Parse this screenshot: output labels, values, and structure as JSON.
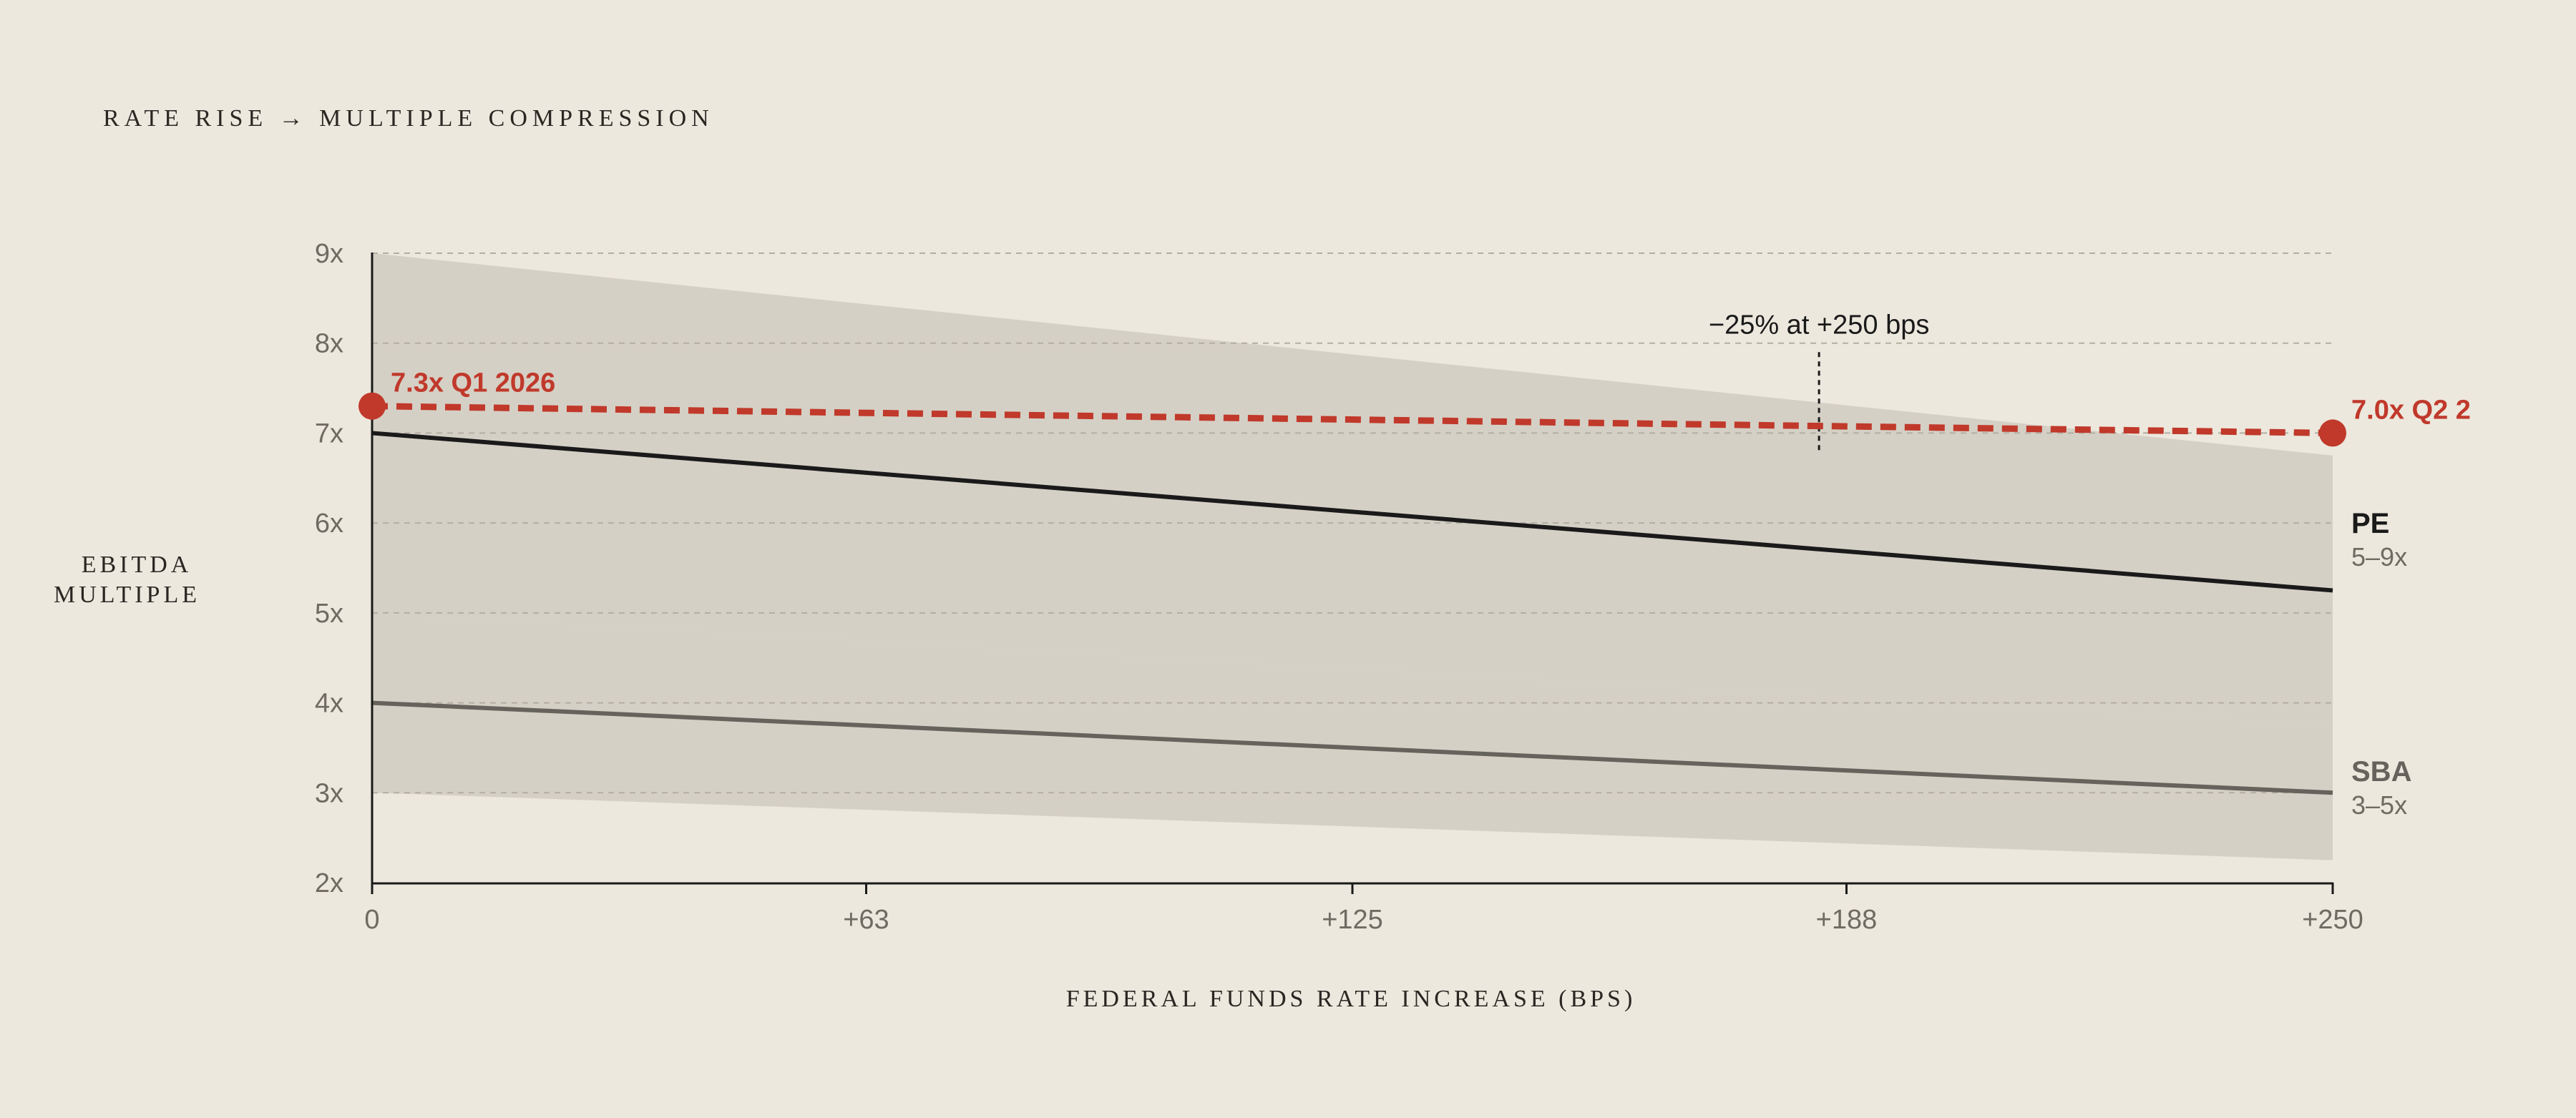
{
  "chart_data": {
    "type": "line",
    "title": "RATE RISE → MULTIPLE COMPRESSION",
    "xlabel": "FEDERAL FUNDS RATE INCREASE (BPS)",
    "ylabel": [
      "EBITDA",
      "MULTIPLE"
    ],
    "x_ticks": [
      "0",
      "+63",
      "+125",
      "+188",
      "+250"
    ],
    "y_ticks": [
      "2x",
      "3x",
      "4x",
      "5x",
      "6x",
      "7x",
      "8x",
      "9x"
    ],
    "xlim": [
      0,
      250
    ],
    "ylim": [
      2,
      9
    ],
    "grid": "horizontal-dashed",
    "series": [
      {
        "name": "PE",
        "range_label": "5–9x",
        "color": "#1a1a1a",
        "x": [
          0,
          250
        ],
        "y": [
          7.0,
          5.25
        ],
        "band_lower": [
          5.0,
          3.75
        ],
        "band_upper": [
          9.0,
          6.75
        ]
      },
      {
        "name": "SBA",
        "range_label": "3–5x",
        "color": "#66635d",
        "x": [
          0,
          250
        ],
        "y": [
          4.0,
          3.0
        ],
        "band_lower": [
          3.0,
          2.25
        ],
        "band_upper": [
          5.0,
          3.75
        ]
      }
    ],
    "highlight": {
      "color": "#C0392B",
      "x": [
        0,
        250
      ],
      "y": [
        7.3,
        7.0
      ],
      "start_label": "7.3x Q1 2026",
      "end_label": "7.0x Q2 2"
    },
    "annotation": {
      "text": "−25% at +250 bps",
      "x": 184.5,
      "y_from": 7.9,
      "y_to": 6.8
    }
  }
}
